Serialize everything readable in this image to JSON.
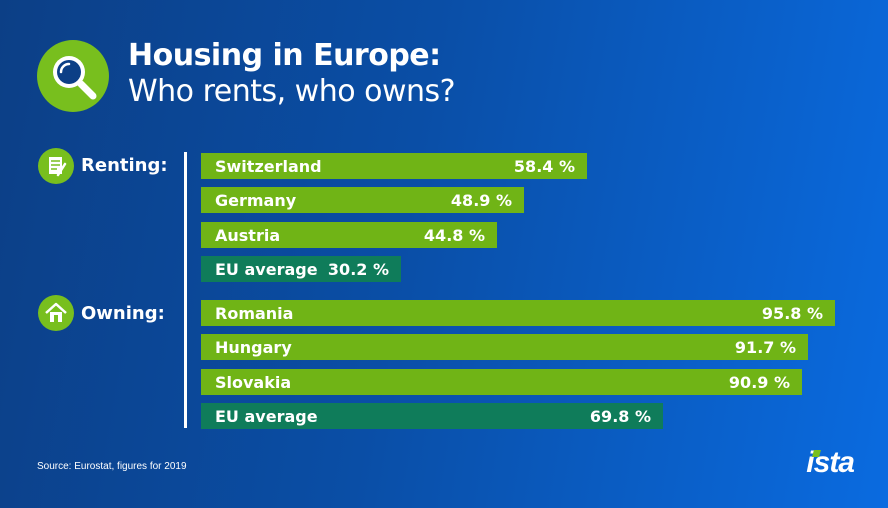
{
  "header": {
    "title_line1": "Housing in Europe:",
    "title_line2": "Who rents, who owns?",
    "icon": "magnifier-icon"
  },
  "categories": {
    "renting": {
      "label": "Renting:",
      "icon": "document-icon"
    },
    "owning": {
      "label": "Owning:",
      "icon": "house-icon"
    }
  },
  "chart_data": {
    "type": "bar",
    "orientation": "horizontal",
    "title": "Housing in Europe: Who rents, who owns?",
    "unit": "%",
    "xlim": [
      0,
      100
    ],
    "groups": [
      {
        "name": "Renting:",
        "bars": [
          {
            "label": "Switzerland",
            "value": 58.4,
            "display": "58.4 %",
            "kind": "country"
          },
          {
            "label": "Germany",
            "value": 48.9,
            "display": "48.9 %",
            "kind": "country"
          },
          {
            "label": "Austria",
            "value": 44.8,
            "display": "44.8 %",
            "kind": "country"
          },
          {
            "label": "EU average",
            "value": 30.2,
            "display": "30.2 %",
            "kind": "average"
          }
        ]
      },
      {
        "name": "Owning:",
        "bars": [
          {
            "label": "Romania",
            "value": 95.8,
            "display": "95.8 %",
            "kind": "country"
          },
          {
            "label": "Hungary",
            "value": 91.7,
            "display": "91.7 %",
            "kind": "country"
          },
          {
            "label": "Slovakia",
            "value": 90.9,
            "display": "90.9 %",
            "kind": "country"
          },
          {
            "label": "EU average",
            "value": 69.8,
            "display": "69.8 %",
            "kind": "average"
          }
        ]
      }
    ],
    "colors": {
      "country": "#70b416",
      "average": "#0f7c5a"
    },
    "grid": false,
    "legend": "none"
  },
  "footer": {
    "source": "Source: Eurostat, figures for 2019",
    "brand": "ista"
  }
}
